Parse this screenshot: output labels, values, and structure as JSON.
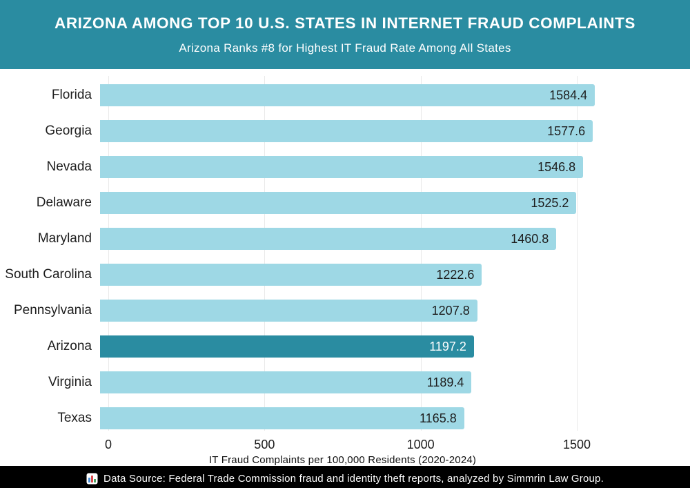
{
  "header": {
    "title": "ARIZONA AMONG TOP 10 U.S. STATES IN INTERNET FRAUD COMPLAINTS",
    "subtitle": "Arizona Ranks #8 for Highest IT Fraud Rate Among All States"
  },
  "chart_data": {
    "type": "bar",
    "orientation": "horizontal",
    "categories": [
      "Florida",
      "Georgia",
      "Nevada",
      "Delaware",
      "Maryland",
      "South Carolina",
      "Pennsylvania",
      "Arizona",
      "Virginia",
      "Texas"
    ],
    "values": [
      1584.4,
      1577.6,
      1546.8,
      1525.2,
      1460.8,
      1222.6,
      1207.8,
      1197.2,
      1189.4,
      1165.8
    ],
    "value_labels": [
      "1584.4",
      "1577.6",
      "1546.8",
      "1525.2",
      "1460.8",
      "1222.6",
      "1207.8",
      "1197.2",
      "1189.4",
      "1165.8"
    ],
    "highlight_category": "Arizona",
    "title": "ARIZONA AMONG TOP 10 U.S. STATES IN INTERNET FRAUD COMPLAINTS",
    "subtitle": "Arizona Ranks #8 for Highest IT Fraud Rate Among All States",
    "xlabel": "IT Fraud Complaints per 100,000 Residents (2020-2024)",
    "ylabel": "",
    "xticks": [
      0,
      500,
      1000,
      1500
    ],
    "xlim": [
      0,
      1500
    ],
    "grid": true,
    "legend": false,
    "value_labels_position": "inside-end"
  },
  "footer": {
    "icon": "bar-chart-emoji",
    "source_text": "Data Source: Federal Trade Commission fraud and identity theft reports, analyzed by Simmrin Law Group."
  },
  "colors": {
    "header_bg": "#2a8ca1",
    "bar": "#9ed8e5",
    "highlight_bar": "#2a8ca1",
    "value_text": "#1d1d1d",
    "highlight_value_text": "#ffffff",
    "gridline": "#e9e9e9",
    "footer_bg": "#000000",
    "footer_text": "#ffffff"
  }
}
